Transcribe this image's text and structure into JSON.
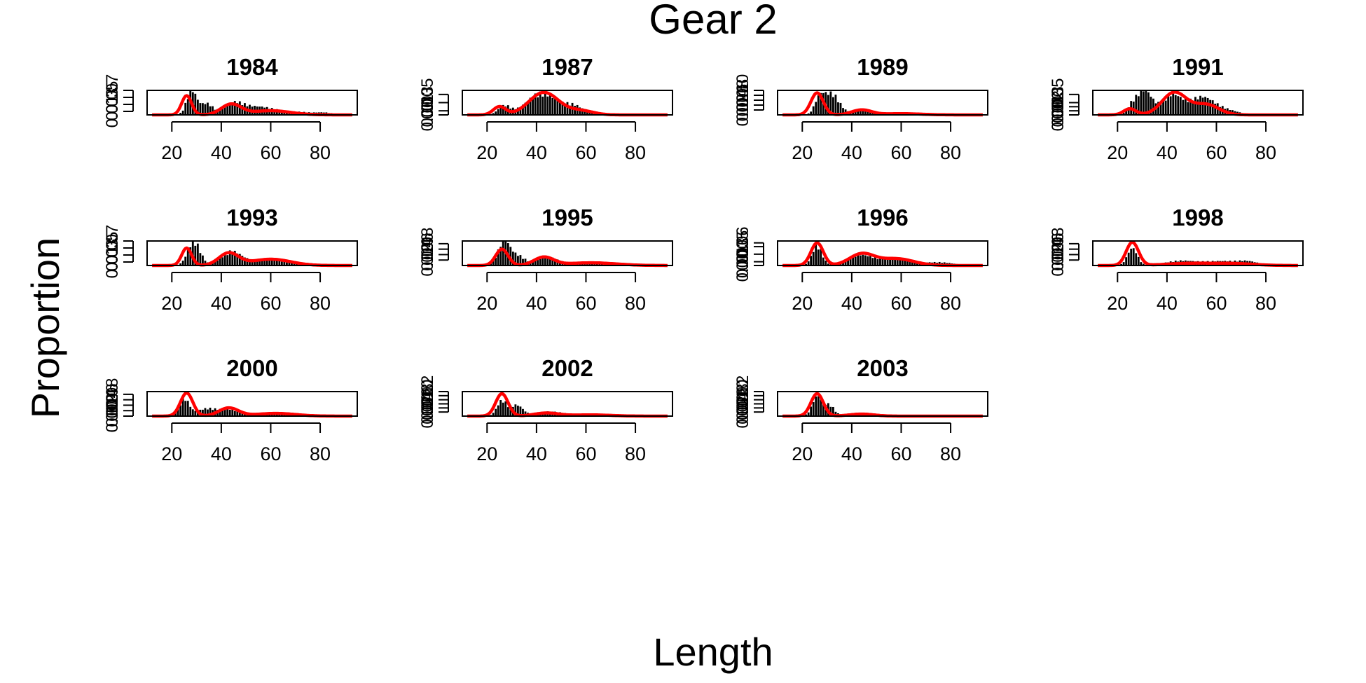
{
  "figure": {
    "title": "Gear 2",
    "xlabel": "Length",
    "ylabel": "Proportion"
  },
  "colors": {
    "bars": "#000000",
    "fit_line": "#ff0000",
    "frame": "#000000",
    "background": "#ffffff"
  },
  "chart_data": {
    "type": "bar",
    "description_of_series": [
      "observed proportion by length bin (black bars)",
      "fitted proportion (red line)"
    ],
    "x_range": [
      10,
      95
    ],
    "x_ticks": [
      20,
      40,
      60,
      80
    ],
    "panels": [
      {
        "title": "1984",
        "ylim": [
          0,
          0.07
        ],
        "y_ticks": [
          0.01,
          0.03,
          0.05,
          0.07
        ],
        "obs_peaks": [
          [
            28,
            0.065,
            2.0
          ],
          [
            34,
            0.03,
            2.5
          ],
          [
            45,
            0.03,
            4
          ],
          [
            55,
            0.02,
            6
          ],
          [
            70,
            0.008,
            8
          ],
          [
            82,
            0.004,
            3
          ]
        ],
        "fit_peaks": [
          [
            26,
            0.055,
            2.0
          ],
          [
            44,
            0.03,
            4.0
          ],
          [
            60,
            0.012,
            8
          ]
        ]
      },
      {
        "title": "1987",
        "ylim": [
          0,
          0.06
        ],
        "y_ticks": [
          0.0,
          0.01,
          0.03,
          0.05
        ],
        "obs_peaks": [
          [
            27,
            0.02,
            2.5
          ],
          [
            42,
            0.05,
            6
          ],
          [
            55,
            0.02,
            4
          ]
        ],
        "fit_peaks": [
          [
            25,
            0.02,
            2.5
          ],
          [
            43,
            0.055,
            6
          ],
          [
            58,
            0.01,
            5
          ]
        ]
      },
      {
        "title": "1989",
        "ylim": [
          0,
          0.1
        ],
        "y_ticks": [
          0.02,
          0.04,
          0.06,
          0.08,
          0.1
        ],
        "obs_peaks": [
          [
            27,
            0.06,
            2.0
          ],
          [
            32,
            0.08,
            3
          ],
          [
            44,
            0.015,
            4
          ],
          [
            58,
            0.008,
            10
          ]
        ],
        "fit_peaks": [
          [
            26,
            0.09,
            2.5
          ],
          [
            44,
            0.02,
            4
          ],
          [
            60,
            0.005,
            8
          ]
        ]
      },
      {
        "title": "1991",
        "ylim": [
          0,
          0.06
        ],
        "y_ticks": [
          0.0,
          0.01,
          0.02,
          0.03,
          0.05
        ],
        "obs_peaks": [
          [
            26,
            0.02,
            2
          ],
          [
            31,
            0.055,
            3
          ],
          [
            42,
            0.045,
            4
          ],
          [
            54,
            0.04,
            5
          ],
          [
            64,
            0.01,
            5
          ]
        ],
        "fit_peaks": [
          [
            25,
            0.015,
            2.5
          ],
          [
            43,
            0.055,
            5
          ],
          [
            56,
            0.025,
            5
          ]
        ]
      },
      {
        "title": "1993",
        "ylim": [
          0,
          0.07
        ],
        "y_ticks": [
          0.01,
          0.03,
          0.05,
          0.07
        ],
        "obs_peaks": [
          [
            29,
            0.065,
            2.5
          ],
          [
            44,
            0.035,
            4
          ],
          [
            58,
            0.015,
            8
          ],
          [
            74,
            0.005,
            5
          ]
        ],
        "fit_peaks": [
          [
            26,
            0.05,
            2.0
          ],
          [
            43,
            0.035,
            4
          ],
          [
            60,
            0.018,
            8
          ]
        ]
      },
      {
        "title": "1995",
        "ylim": [
          0,
          0.09
        ],
        "y_ticks": [
          0.02,
          0.04,
          0.06,
          0.08
        ],
        "obs_peaks": [
          [
            27,
            0.085,
            2.5
          ],
          [
            33,
            0.03,
            2.5
          ],
          [
            44,
            0.025,
            4
          ],
          [
            60,
            0.012,
            10
          ]
        ],
        "fit_peaks": [
          [
            26,
            0.06,
            2.5
          ],
          [
            43,
            0.03,
            4
          ],
          [
            62,
            0.01,
            10
          ]
        ]
      },
      {
        "title": "1996",
        "ylim": [
          0,
          0.065
        ],
        "y_ticks": [
          0.0,
          0.01,
          0.03,
          0.05,
          0.06
        ],
        "obs_peaks": [
          [
            26,
            0.05,
            2.0
          ],
          [
            43,
            0.025,
            5
          ],
          [
            57,
            0.02,
            6
          ],
          [
            75,
            0.008,
            6
          ]
        ],
        "fit_peaks": [
          [
            26,
            0.06,
            2.5
          ],
          [
            44,
            0.03,
            5
          ],
          [
            58,
            0.018,
            7
          ]
        ]
      },
      {
        "title": "1998",
        "ylim": [
          0,
          0.09
        ],
        "y_ticks": [
          0.02,
          0.04,
          0.06,
          0.08
        ],
        "obs_peaks": [
          [
            26,
            0.06,
            2.0
          ],
          [
            45,
            0.015,
            6
          ],
          [
            62,
            0.015,
            8
          ],
          [
            73,
            0.01,
            4
          ]
        ],
        "fit_peaks": [
          [
            26,
            0.085,
            2.5
          ],
          [
            50,
            0.008,
            10
          ],
          [
            68,
            0.006,
            8
          ]
        ]
      },
      {
        "title": "2000",
        "ylim": [
          0,
          0.09
        ],
        "y_ticks": [
          0.0,
          0.02,
          0.04,
          0.06,
          0.08
        ],
        "obs_peaks": [
          [
            25,
            0.06,
            2.0
          ],
          [
            34,
            0.025,
            4
          ],
          [
            43,
            0.02,
            4
          ],
          [
            60,
            0.012,
            8
          ]
        ],
        "fit_peaks": [
          [
            26,
            0.085,
            2.5
          ],
          [
            43,
            0.03,
            4
          ],
          [
            62,
            0.01,
            8
          ]
        ]
      },
      {
        "title": "2002",
        "ylim": [
          0,
          0.12
        ],
        "y_ticks": [
          0.02,
          0.04,
          0.06,
          0.08,
          0.1,
          0.12
        ],
        "obs_peaks": [
          [
            26,
            0.07,
            2.0
          ],
          [
            32,
            0.05,
            2.5
          ],
          [
            45,
            0.02,
            5
          ],
          [
            60,
            0.008,
            8
          ]
        ],
        "fit_peaks": [
          [
            26,
            0.11,
            2.5
          ],
          [
            44,
            0.015,
            5
          ],
          [
            62,
            0.006,
            8
          ]
        ]
      },
      {
        "title": "2003",
        "ylim": [
          0,
          0.12
        ],
        "y_ticks": [
          0.02,
          0.04,
          0.06,
          0.08,
          0.1,
          0.12
        ],
        "obs_peaks": [
          [
            26,
            0.09,
            2.0
          ],
          [
            31,
            0.05,
            2.0
          ],
          [
            44,
            0.008,
            5
          ]
        ],
        "fit_peaks": [
          [
            26,
            0.11,
            2.5
          ],
          [
            44,
            0.01,
            5
          ]
        ]
      }
    ]
  }
}
